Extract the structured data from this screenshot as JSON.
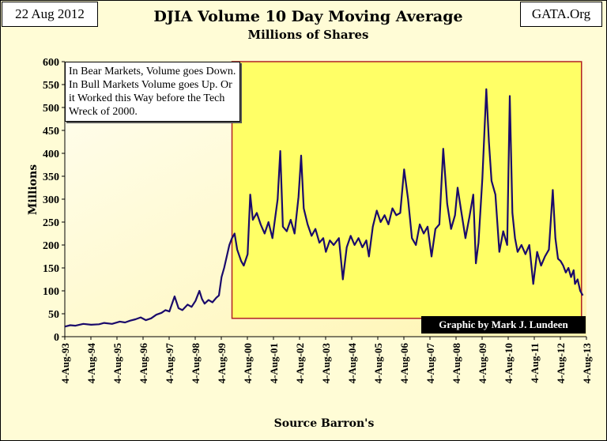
{
  "header": {
    "date": "22 Aug 2012",
    "source_site": "GATA.Org"
  },
  "chart_data": {
    "type": "line",
    "title": "DJIA Volume 10 Day Moving Average",
    "subtitle": "Millions of Shares",
    "xlabel": "Source Barron's",
    "ylabel": "Millions",
    "ylim": [
      0,
      600
    ],
    "yticks": [
      0,
      50,
      100,
      150,
      200,
      250,
      300,
      350,
      400,
      450,
      500,
      550,
      600
    ],
    "xticks": [
      "4-Aug-93",
      "4-Aug-94",
      "4-Aug-95",
      "4-Aug-96",
      "4-Aug-97",
      "4-Aug-98",
      "4-Aug-99",
      "4-Aug-00",
      "4-Aug-01",
      "4-Aug-02",
      "4-Aug-03",
      "4-Aug-04",
      "4-Aug-05",
      "4-Aug-06",
      "4-Aug-07",
      "4-Aug-08",
      "4-Aug-09",
      "4-Aug-10",
      "4-Aug-11",
      "4-Aug-12",
      "4-Aug-13"
    ],
    "xlim": [
      1993.59,
      2013.59
    ],
    "grid": false,
    "line_color": "#1a0a6b",
    "highlight_color": "#ffff66",
    "highlight_border": "#b22222",
    "highlight_range": [
      2000.0,
      2013.4
    ],
    "annotation": "In Bear Markets, Volume goes Down.  In Bull Markets Volume goes Up.  Or it Worked this Way before the Tech Wreck of 2000.",
    "credit": "Graphic by Mark J. Lundeen",
    "series": [
      {
        "points": [
          [
            1993.6,
            22
          ],
          [
            1993.8,
            25
          ],
          [
            1994.0,
            24
          ],
          [
            1994.3,
            28
          ],
          [
            1994.6,
            26
          ],
          [
            1994.9,
            27
          ],
          [
            1995.1,
            30
          ],
          [
            1995.4,
            28
          ],
          [
            1995.7,
            33
          ],
          [
            1995.9,
            31
          ],
          [
            1996.1,
            35
          ],
          [
            1996.3,
            38
          ],
          [
            1996.5,
            42
          ],
          [
            1996.7,
            36
          ],
          [
            1996.9,
            40
          ],
          [
            1997.1,
            48
          ],
          [
            1997.3,
            52
          ],
          [
            1997.45,
            58
          ],
          [
            1997.6,
            55
          ],
          [
            1997.8,
            88
          ],
          [
            1997.95,
            62
          ],
          [
            1998.1,
            58
          ],
          [
            1998.3,
            70
          ],
          [
            1998.45,
            65
          ],
          [
            1998.6,
            78
          ],
          [
            1998.75,
            100
          ],
          [
            1998.85,
            82
          ],
          [
            1998.95,
            72
          ],
          [
            1999.1,
            80
          ],
          [
            1999.25,
            75
          ],
          [
            1999.4,
            85
          ],
          [
            1999.5,
            90
          ],
          [
            1999.6,
            130
          ],
          [
            1999.7,
            150
          ],
          [
            1999.8,
            175
          ],
          [
            1999.9,
            200
          ],
          [
            2000.0,
            215
          ],
          [
            2000.1,
            225
          ],
          [
            2000.2,
            190
          ],
          [
            2000.35,
            165
          ],
          [
            2000.45,
            155
          ],
          [
            2000.6,
            180
          ],
          [
            2000.7,
            310
          ],
          [
            2000.8,
            255
          ],
          [
            2000.95,
            270
          ],
          [
            2001.1,
            245
          ],
          [
            2001.25,
            225
          ],
          [
            2001.4,
            250
          ],
          [
            2001.55,
            215
          ],
          [
            2001.75,
            300
          ],
          [
            2001.85,
            405
          ],
          [
            2001.95,
            240
          ],
          [
            2002.1,
            230
          ],
          [
            2002.25,
            255
          ],
          [
            2002.4,
            225
          ],
          [
            2002.55,
            305
          ],
          [
            2002.65,
            395
          ],
          [
            2002.75,
            280
          ],
          [
            2002.9,
            245
          ],
          [
            2003.05,
            220
          ],
          [
            2003.2,
            235
          ],
          [
            2003.35,
            205
          ],
          [
            2003.5,
            215
          ],
          [
            2003.6,
            185
          ],
          [
            2003.75,
            210
          ],
          [
            2003.9,
            200
          ],
          [
            2004.1,
            215
          ],
          [
            2004.25,
            125
          ],
          [
            2004.4,
            195
          ],
          [
            2004.55,
            220
          ],
          [
            2004.7,
            200
          ],
          [
            2004.85,
            215
          ],
          [
            2005.0,
            195
          ],
          [
            2005.15,
            210
          ],
          [
            2005.25,
            175
          ],
          [
            2005.4,
            240
          ],
          [
            2005.55,
            275
          ],
          [
            2005.7,
            250
          ],
          [
            2005.85,
            265
          ],
          [
            2006.0,
            245
          ],
          [
            2006.15,
            280
          ],
          [
            2006.3,
            265
          ],
          [
            2006.45,
            270
          ],
          [
            2006.6,
            365
          ],
          [
            2006.75,
            300
          ],
          [
            2006.9,
            215
          ],
          [
            2007.05,
            200
          ],
          [
            2007.2,
            245
          ],
          [
            2007.35,
            225
          ],
          [
            2007.5,
            240
          ],
          [
            2007.65,
            175
          ],
          [
            2007.8,
            235
          ],
          [
            2007.95,
            245
          ],
          [
            2008.1,
            410
          ],
          [
            2008.25,
            290
          ],
          [
            2008.4,
            235
          ],
          [
            2008.55,
            265
          ],
          [
            2008.65,
            325
          ],
          [
            2008.8,
            270
          ],
          [
            2008.95,
            215
          ],
          [
            2009.1,
            260
          ],
          [
            2009.25,
            310
          ],
          [
            2009.35,
            160
          ],
          [
            2009.45,
            205
          ],
          [
            2009.6,
            345
          ],
          [
            2009.75,
            540
          ],
          [
            2009.85,
            425
          ],
          [
            2009.95,
            340
          ],
          [
            2010.1,
            310
          ],
          [
            2010.25,
            185
          ],
          [
            2010.4,
            230
          ],
          [
            2010.55,
            200
          ],
          [
            2010.65,
            525
          ],
          [
            2010.75,
            270
          ],
          [
            2010.85,
            215
          ],
          [
            2010.95,
            185
          ],
          [
            2011.1,
            200
          ],
          [
            2011.25,
            180
          ],
          [
            2011.4,
            200
          ],
          [
            2011.55,
            115
          ],
          [
            2011.7,
            185
          ],
          [
            2011.85,
            155
          ],
          [
            2012.0,
            175
          ],
          [
            2012.15,
            190
          ],
          [
            2012.3,
            320
          ],
          [
            2012.4,
            215
          ],
          [
            2012.5,
            170
          ],
          [
            2012.6,
            165
          ],
          [
            2012.7,
            155
          ],
          [
            2012.8,
            140
          ],
          [
            2012.9,
            150
          ],
          [
            2013.0,
            130
          ],
          [
            2013.1,
            145
          ],
          [
            2013.15,
            115
          ],
          [
            2013.25,
            125
          ],
          [
            2013.35,
            100
          ],
          [
            2013.45,
            90
          ]
        ]
      }
    ]
  }
}
